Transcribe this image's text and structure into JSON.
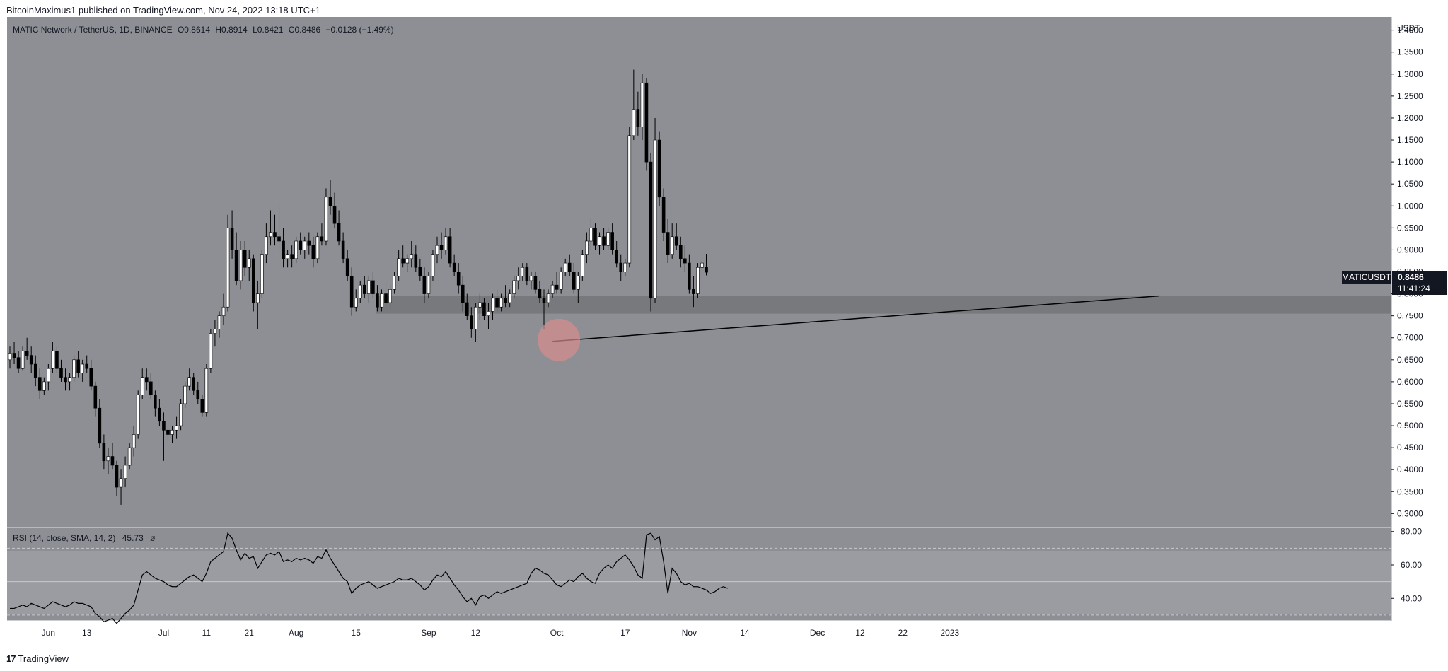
{
  "header": {
    "published": "BitcoinMaximus1 published on TradingView.com, Nov 24, 2022 13:18 UTC+1"
  },
  "legend": {
    "symbol": "MATIC Network / TetherUS, 1D, BINANCE",
    "o_label": "O",
    "o_value": "0.8614",
    "h_label": "H",
    "h_value": "0.8914",
    "l_label": "L",
    "l_value": "0.8421",
    "c_label": "C",
    "c_value": "0.8486",
    "change": "−0.0128 (−1.49%)"
  },
  "price_label": {
    "ticker": "MATICUSDT",
    "price": "0.8486",
    "countdown": "11:41:24"
  },
  "rsi_legend": {
    "text": "RSI (14, close, SMA, 14, 2)",
    "value": "45.73",
    "symbol": "ø"
  },
  "footer": {
    "logo": "17",
    "brand": "TradingView"
  },
  "colors": {
    "pane_background": "#8d8f95",
    "candle_up": "#ffffff",
    "candle_down": "#000000",
    "support_zone": "#747678",
    "trendline": "#000000",
    "highlight_circle": "#d98c8c"
  },
  "chart_data": [
    {
      "type": "candlestick",
      "title": "MATIC Network / TetherUS, 1D, BINANCE",
      "ylabel": "USDT",
      "ylim": [
        0.27,
        1.43
      ],
      "y_ticks": [
        "1.4000",
        "1.3500",
        "1.3000",
        "1.2500",
        "1.2000",
        "1.1500",
        "1.1000",
        "1.0500",
        "1.0000",
        "0.9500",
        "0.9000",
        "0.8500",
        "0.8000",
        "0.7500",
        "0.7000",
        "0.6500",
        "0.6000",
        "0.5500",
        "0.5000",
        "0.4500",
        "0.4000",
        "0.3500",
        "0.3000"
      ],
      "x_ticks": [
        {
          "label": "Jun",
          "day": 9
        },
        {
          "label": "13",
          "day": 18
        },
        {
          "label": "Jul",
          "day": 36
        },
        {
          "label": "11",
          "day": 46
        },
        {
          "label": "21",
          "day": 56
        },
        {
          "label": "Aug",
          "day": 67
        },
        {
          "label": "15",
          "day": 81
        },
        {
          "label": "Sep",
          "day": 98
        },
        {
          "label": "12",
          "day": 109
        },
        {
          "label": "Oct",
          "day": 128
        },
        {
          "label": "17",
          "day": 144
        },
        {
          "label": "Nov",
          "day": 159
        },
        {
          "label": "14",
          "day": 172
        },
        {
          "label": "Dec",
          "day": 189
        },
        {
          "label": "12",
          "day": 199
        },
        {
          "label": "22",
          "day": 209
        },
        {
          "label": "2023",
          "day": 220
        }
      ],
      "candles": [
        [
          0.65,
          0.68,
          0.63,
          0.665
        ],
        [
          0.665,
          0.69,
          0.64,
          0.655
        ],
        [
          0.655,
          0.67,
          0.62,
          0.63
        ],
        [
          0.63,
          0.68,
          0.625,
          0.67
        ],
        [
          0.67,
          0.7,
          0.65,
          0.66
        ],
        [
          0.66,
          0.68,
          0.62,
          0.64
        ],
        [
          0.64,
          0.66,
          0.59,
          0.61
        ],
        [
          0.61,
          0.63,
          0.56,
          0.58
        ],
        [
          0.58,
          0.61,
          0.57,
          0.6
        ],
        [
          0.6,
          0.64,
          0.58,
          0.63
        ],
        [
          0.63,
          0.69,
          0.62,
          0.67
        ],
        [
          0.67,
          0.68,
          0.62,
          0.63
        ],
        [
          0.63,
          0.65,
          0.6,
          0.61
        ],
        [
          0.61,
          0.63,
          0.58,
          0.6
        ],
        [
          0.6,
          0.62,
          0.58,
          0.61
        ],
        [
          0.61,
          0.66,
          0.6,
          0.65
        ],
        [
          0.65,
          0.67,
          0.61,
          0.62
        ],
        [
          0.62,
          0.65,
          0.6,
          0.64
        ],
        [
          0.64,
          0.66,
          0.62,
          0.63
        ],
        [
          0.63,
          0.65,
          0.58,
          0.59
        ],
        [
          0.59,
          0.6,
          0.52,
          0.54
        ],
        [
          0.54,
          0.56,
          0.45,
          0.46
        ],
        [
          0.46,
          0.48,
          0.4,
          0.42
        ],
        [
          0.42,
          0.45,
          0.39,
          0.43
        ],
        [
          0.43,
          0.46,
          0.4,
          0.41
        ],
        [
          0.41,
          0.42,
          0.34,
          0.36
        ],
        [
          0.36,
          0.4,
          0.32,
          0.38
        ],
        [
          0.38,
          0.43,
          0.36,
          0.41
        ],
        [
          0.41,
          0.46,
          0.4,
          0.45
        ],
        [
          0.45,
          0.5,
          0.43,
          0.48
        ],
        [
          0.48,
          0.58,
          0.47,
          0.57
        ],
        [
          0.57,
          0.63,
          0.56,
          0.61
        ],
        [
          0.61,
          0.63,
          0.58,
          0.6
        ],
        [
          0.6,
          0.62,
          0.56,
          0.57
        ],
        [
          0.57,
          0.58,
          0.52,
          0.54
        ],
        [
          0.54,
          0.56,
          0.5,
          0.51
        ],
        [
          0.51,
          0.53,
          0.42,
          0.49
        ],
        [
          0.49,
          0.5,
          0.46,
          0.48
        ],
        [
          0.48,
          0.5,
          0.46,
          0.49
        ],
        [
          0.49,
          0.52,
          0.47,
          0.5
        ],
        [
          0.5,
          0.56,
          0.49,
          0.55
        ],
        [
          0.55,
          0.6,
          0.54,
          0.59
        ],
        [
          0.59,
          0.63,
          0.58,
          0.61
        ],
        [
          0.61,
          0.62,
          0.57,
          0.58
        ],
        [
          0.58,
          0.6,
          0.55,
          0.56
        ],
        [
          0.56,
          0.57,
          0.52,
          0.53
        ],
        [
          0.53,
          0.64,
          0.52,
          0.63
        ],
        [
          0.63,
          0.72,
          0.62,
          0.71
        ],
        [
          0.71,
          0.74,
          0.68,
          0.72
        ],
        [
          0.72,
          0.76,
          0.7,
          0.75
        ],
        [
          0.75,
          0.8,
          0.73,
          0.77
        ],
        [
          0.77,
          0.98,
          0.76,
          0.95
        ],
        [
          0.95,
          0.99,
          0.88,
          0.9
        ],
        [
          0.9,
          0.94,
          0.82,
          0.83
        ],
        [
          0.83,
          0.92,
          0.81,
          0.9
        ],
        [
          0.9,
          0.92,
          0.84,
          0.86
        ],
        [
          0.86,
          0.9,
          0.83,
          0.88
        ],
        [
          0.88,
          0.89,
          0.76,
          0.78
        ],
        [
          0.78,
          0.83,
          0.72,
          0.8
        ],
        [
          0.8,
          0.9,
          0.79,
          0.89
        ],
        [
          0.89,
          0.96,
          0.87,
          0.93
        ],
        [
          0.93,
          0.99,
          0.91,
          0.94
        ],
        [
          0.94,
          0.98,
          0.91,
          0.93
        ],
        [
          0.93,
          1.0,
          0.9,
          0.92
        ],
        [
          0.92,
          0.95,
          0.86,
          0.88
        ],
        [
          0.88,
          0.9,
          0.86,
          0.89
        ],
        [
          0.89,
          0.91,
          0.86,
          0.88
        ],
        [
          0.88,
          0.93,
          0.87,
          0.92
        ],
        [
          0.92,
          0.94,
          0.89,
          0.9
        ],
        [
          0.9,
          0.93,
          0.88,
          0.92
        ],
        [
          0.92,
          0.94,
          0.89,
          0.91
        ],
        [
          0.91,
          0.93,
          0.86,
          0.88
        ],
        [
          0.88,
          0.94,
          0.87,
          0.93
        ],
        [
          0.93,
          0.96,
          0.91,
          0.92
        ],
        [
          0.92,
          1.04,
          0.91,
          1.02
        ],
        [
          1.02,
          1.06,
          0.98,
          1.0
        ],
        [
          1.0,
          1.03,
          0.95,
          0.96
        ],
        [
          0.96,
          0.99,
          0.91,
          0.92
        ],
        [
          0.92,
          0.94,
          0.87,
          0.88
        ],
        [
          0.88,
          0.9,
          0.83,
          0.84
        ],
        [
          0.84,
          0.86,
          0.75,
          0.77
        ],
        [
          0.77,
          0.81,
          0.76,
          0.79
        ],
        [
          0.79,
          0.83,
          0.78,
          0.82
        ],
        [
          0.82,
          0.84,
          0.79,
          0.8
        ],
        [
          0.8,
          0.84,
          0.78,
          0.83
        ],
        [
          0.83,
          0.85,
          0.79,
          0.8
        ],
        [
          0.8,
          0.82,
          0.76,
          0.77
        ],
        [
          0.77,
          0.81,
          0.76,
          0.8
        ],
        [
          0.8,
          0.83,
          0.77,
          0.78
        ],
        [
          0.78,
          0.82,
          0.77,
          0.81
        ],
        [
          0.81,
          0.85,
          0.8,
          0.84
        ],
        [
          0.84,
          0.9,
          0.83,
          0.88
        ],
        [
          0.88,
          0.91,
          0.86,
          0.87
        ],
        [
          0.87,
          0.89,
          0.85,
          0.88
        ],
        [
          0.88,
          0.92,
          0.86,
          0.89
        ],
        [
          0.89,
          0.91,
          0.85,
          0.86
        ],
        [
          0.86,
          0.88,
          0.83,
          0.84
        ],
        [
          0.84,
          0.86,
          0.78,
          0.8
        ],
        [
          0.8,
          0.85,
          0.79,
          0.84
        ],
        [
          0.84,
          0.9,
          0.83,
          0.89
        ],
        [
          0.89,
          0.93,
          0.87,
          0.91
        ],
        [
          0.91,
          0.94,
          0.88,
          0.9
        ],
        [
          0.9,
          0.95,
          0.89,
          0.93
        ],
        [
          0.93,
          0.95,
          0.86,
          0.87
        ],
        [
          0.87,
          0.89,
          0.84,
          0.85
        ],
        [
          0.85,
          0.87,
          0.8,
          0.82
        ],
        [
          0.82,
          0.84,
          0.76,
          0.78
        ],
        [
          0.78,
          0.8,
          0.74,
          0.75
        ],
        [
          0.75,
          0.77,
          0.7,
          0.72
        ],
        [
          0.72,
          0.78,
          0.69,
          0.77
        ],
        [
          0.77,
          0.8,
          0.74,
          0.78
        ],
        [
          0.78,
          0.79,
          0.74,
          0.75
        ],
        [
          0.75,
          0.78,
          0.72,
          0.76
        ],
        [
          0.76,
          0.8,
          0.74,
          0.79
        ],
        [
          0.79,
          0.81,
          0.76,
          0.77
        ],
        [
          0.77,
          0.8,
          0.76,
          0.79
        ],
        [
          0.79,
          0.82,
          0.77,
          0.78
        ],
        [
          0.78,
          0.81,
          0.77,
          0.8
        ],
        [
          0.8,
          0.84,
          0.79,
          0.83
        ],
        [
          0.83,
          0.86,
          0.81,
          0.84
        ],
        [
          0.84,
          0.87,
          0.83,
          0.86
        ],
        [
          0.86,
          0.87,
          0.82,
          0.83
        ],
        [
          0.83,
          0.85,
          0.81,
          0.84
        ],
        [
          0.84,
          0.85,
          0.8,
          0.81
        ],
        [
          0.81,
          0.83,
          0.78,
          0.79
        ],
        [
          0.79,
          0.81,
          0.72,
          0.78
        ],
        [
          0.78,
          0.81,
          0.77,
          0.8
        ],
        [
          0.8,
          0.83,
          0.79,
          0.82
        ],
        [
          0.82,
          0.85,
          0.8,
          0.81
        ],
        [
          0.81,
          0.86,
          0.8,
          0.85
        ],
        [
          0.85,
          0.88,
          0.84,
          0.87
        ],
        [
          0.87,
          0.89,
          0.84,
          0.85
        ],
        [
          0.85,
          0.87,
          0.8,
          0.81
        ],
        [
          0.81,
          0.85,
          0.78,
          0.84
        ],
        [
          0.84,
          0.9,
          0.83,
          0.89
        ],
        [
          0.89,
          0.94,
          0.87,
          0.92
        ],
        [
          0.92,
          0.97,
          0.9,
          0.95
        ],
        [
          0.95,
          0.96,
          0.9,
          0.91
        ],
        [
          0.91,
          0.94,
          0.89,
          0.93
        ],
        [
          0.93,
          0.95,
          0.9,
          0.91
        ],
        [
          0.91,
          0.95,
          0.9,
          0.94
        ],
        [
          0.94,
          0.96,
          0.89,
          0.9
        ],
        [
          0.9,
          0.92,
          0.86,
          0.87
        ],
        [
          0.87,
          0.89,
          0.83,
          0.85
        ],
        [
          0.85,
          0.88,
          0.84,
          0.87
        ],
        [
          0.87,
          1.18,
          0.86,
          1.16
        ],
        [
          1.16,
          1.31,
          1.15,
          1.22
        ],
        [
          1.22,
          1.26,
          1.16,
          1.18
        ],
        [
          1.18,
          1.3,
          1.15,
          1.28
        ],
        [
          1.28,
          1.29,
          1.08,
          1.1
        ],
        [
          1.1,
          1.12,
          0.76,
          0.79
        ],
        [
          0.79,
          1.2,
          0.78,
          1.15
        ],
        [
          1.15,
          1.17,
          1.0,
          1.02
        ],
        [
          1.02,
          1.04,
          0.92,
          0.94
        ],
        [
          0.94,
          0.97,
          0.87,
          0.89
        ],
        [
          0.89,
          0.96,
          0.88,
          0.93
        ],
        [
          0.93,
          0.96,
          0.9,
          0.91
        ],
        [
          0.91,
          0.93,
          0.86,
          0.88
        ],
        [
          0.88,
          0.91,
          0.85,
          0.87
        ],
        [
          0.87,
          0.89,
          0.8,
          0.81
        ],
        [
          0.81,
          0.84,
          0.77,
          0.8
        ],
        [
          0.8,
          0.87,
          0.79,
          0.86
        ],
        [
          0.86,
          0.88,
          0.84,
          0.87
        ],
        [
          0.861,
          0.891,
          0.842,
          0.849
        ]
      ]
    },
    {
      "type": "line",
      "title": "RSI (14, close, SMA, 14, 2)",
      "ylim": [
        27,
        82
      ],
      "y_ticks": [
        "80.00",
        "60.00",
        "40.00"
      ],
      "levels": [
        70,
        50,
        30
      ],
      "series": [
        {
          "values": [
            34,
            34,
            35,
            36,
            35,
            37,
            36,
            35,
            34,
            36,
            38,
            37,
            36,
            35,
            36,
            38,
            37,
            37,
            36,
            35,
            31,
            29,
            26,
            27,
            28,
            25,
            28,
            31,
            33,
            36,
            45,
            54,
            56,
            54,
            52,
            51,
            50,
            48,
            47,
            47,
            49,
            51,
            53,
            54,
            52,
            50,
            55,
            62,
            64,
            66,
            68,
            79,
            76,
            69,
            63,
            67,
            64,
            65,
            58,
            62,
            66,
            67,
            66,
            68,
            62,
            63,
            62,
            64,
            63,
            64,
            63,
            61,
            65,
            64,
            69,
            64,
            60,
            56,
            52,
            50,
            43,
            46,
            48,
            49,
            50,
            48,
            46,
            47,
            48,
            49,
            50,
            52,
            51,
            51,
            52,
            50,
            48,
            45,
            47,
            51,
            54,
            53,
            56,
            52,
            48,
            45,
            41,
            38,
            40,
            36,
            41,
            42,
            40,
            42,
            44,
            43,
            44,
            45,
            46,
            47,
            48,
            49,
            55,
            58,
            57,
            55,
            54,
            51,
            48,
            47,
            49,
            51,
            50,
            53,
            55,
            52,
            50,
            49,
            55,
            58,
            60,
            58,
            62,
            64,
            66,
            63,
            59,
            54,
            52,
            78,
            79,
            75,
            77,
            62,
            43,
            58,
            55,
            50,
            48,
            49,
            47,
            47,
            46,
            45,
            43,
            44,
            46,
            47,
            46
          ]
        }
      ]
    }
  ]
}
